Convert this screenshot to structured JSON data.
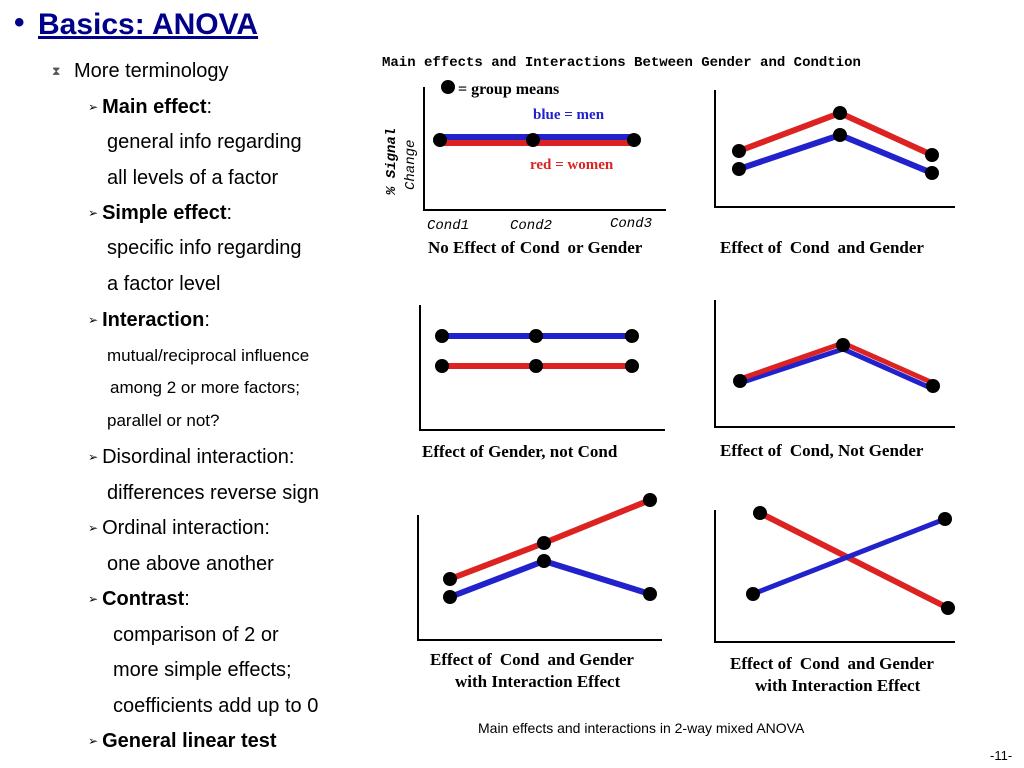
{
  "slide": {
    "bullet": "•",
    "title": "Basics: ANOVA",
    "page": "-11-"
  },
  "left": {
    "level1": {
      "icon": "hourglass-bullet-icon",
      "text": "More terminology"
    },
    "main_effect": {
      "term": "Main effect",
      "colon": ":",
      "desc1": "general info regarding",
      "desc2": "all levels of a factor"
    },
    "simple_effect": {
      "term": "Simple effect",
      "colon": ":",
      "desc1": "specific info regarding",
      "desc2": "a factor level"
    },
    "interaction": {
      "term": "Interaction",
      "colon": ":",
      "desc1": "mutual/reciprocal influence",
      "desc2": "among 2 or more factors;",
      "desc3": "parallel or not?"
    },
    "disordinal": {
      "term": "Disordinal interaction:",
      "desc1": "differences reverse sign"
    },
    "ordinal": {
      "term": "Ordinal interaction:",
      "desc1": "one above another"
    },
    "contrast": {
      "term": "Contrast",
      "colon": ":",
      "desc1": "comparison of 2 or",
      "desc2": "more simple effects;",
      "desc3": "coefficients add up to 0"
    },
    "glt": {
      "term": "General linear test"
    },
    "arrow_glyph": "➢"
  },
  "figure": {
    "header": "Main effects and Interactions Between Gender and Condtion",
    "legend_dot": "= group means",
    "legend_blue": "blue = men",
    "legend_red": "red = women",
    "ylabel1": "% Signal",
    "ylabel2": "Change",
    "x_ticks": [
      "Cond1",
      "Cond2",
      "Cond3"
    ],
    "colors": {
      "men": "#2222cc",
      "women": "#dd2222"
    },
    "panels": [
      {
        "label_a": "No Effect of",
        "label_b": "Cond",
        "label_c": "or Gender",
        "label_d": ""
      },
      {
        "label_a": "Effect of",
        "label_b": "Cond",
        "label_c": "and Gender",
        "label_d": ""
      },
      {
        "label_a": "Effect of Gender, not Cond",
        "label_b": "",
        "label_c": "",
        "label_d": ""
      },
      {
        "label_a": "Effect of",
        "label_b": "Cond",
        "label_c": ", Not Gender",
        "label_d": ""
      },
      {
        "label_a": "Effect of",
        "label_b": "Cond",
        "label_c": "and Gender",
        "label_d": "with Interaction Effect"
      },
      {
        "label_a": "Effect of",
        "label_b": "Cond",
        "label_c": "and Gender",
        "label_d": "with Interaction Effect"
      }
    ],
    "caption": "Main effects and interactions in 2-way mixed ANOVA"
  }
}
